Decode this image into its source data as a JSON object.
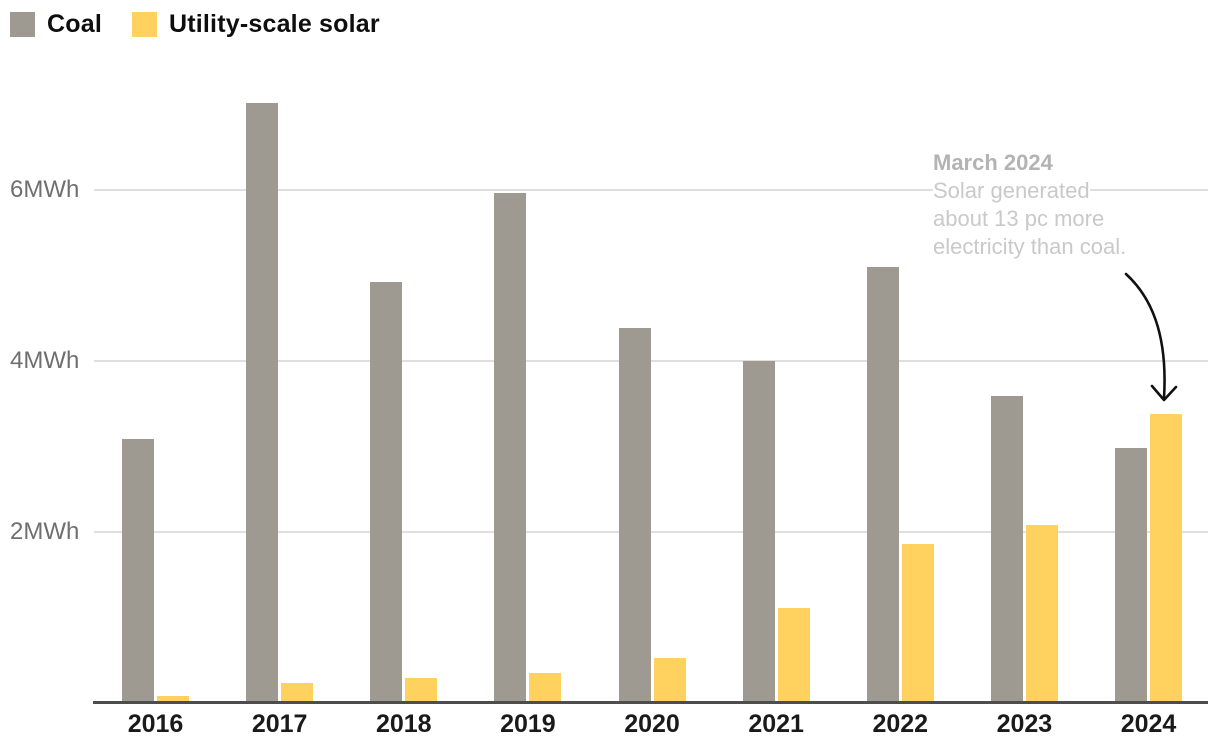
{
  "legend": {
    "items": [
      {
        "label": "Coal",
        "color": "#9e9a91"
      },
      {
        "label": "Utility-scale solar",
        "color": "#ffd15f"
      }
    ]
  },
  "annotation": {
    "title": "March 2024",
    "lines": [
      "Solar generated",
      "about 13 pc more",
      "electricity than coal."
    ]
  },
  "chart_data": {
    "type": "bar",
    "categories": [
      "2016",
      "2017",
      "2018",
      "2019",
      "2020",
      "2021",
      "2022",
      "2023",
      "2024"
    ],
    "series": [
      {
        "name": "Coal",
        "color": "#9e9a91",
        "values": [
          3.09,
          7.02,
          4.92,
          5.96,
          4.39,
          4.0,
          5.1,
          3.59,
          2.98
        ]
      },
      {
        "name": "Utility-scale solar",
        "color": "#ffd15f",
        "values": [
          0.08,
          0.23,
          0.29,
          0.35,
          0.53,
          1.11,
          1.86,
          2.08,
          3.38
        ]
      }
    ],
    "unit": "MWh",
    "y_ticks": [
      {
        "value": 2,
        "label": "2MWh"
      },
      {
        "value": 4,
        "label": "4MWh"
      },
      {
        "value": 6,
        "label": "6MWh"
      }
    ],
    "ylim": [
      0,
      7.1
    ],
    "grid": "horizontal",
    "legend_position": "top-left",
    "annotation_text": "March 2024 Solar generated about 13 pc more electricity than coal."
  },
  "colors": {
    "gridline": "#dfdfdf",
    "axis_line": "#4d4d4d",
    "y_tick_text": "#6f6f6f",
    "x_tick_text": "#1a1a1a",
    "annotation_title": "#b3b3b3",
    "annotation_body": "#c9c9c9",
    "arrow": "#111111"
  }
}
